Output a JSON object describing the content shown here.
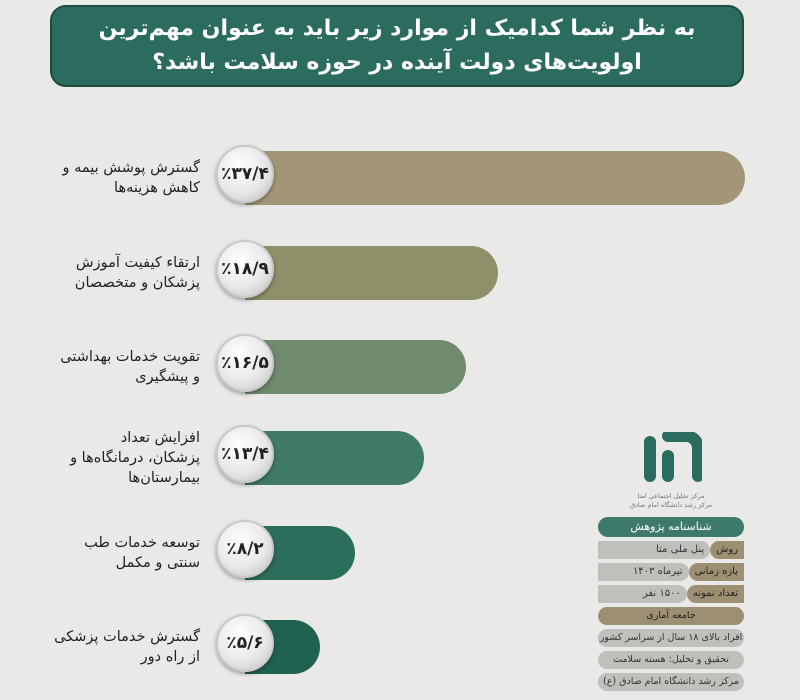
{
  "header": {
    "title_line1": "به نظر شما کدامیک از موارد زیر باید به عنوان مهم‌ترین",
    "title_line2": "اولویت‌های دولت آینده در حوزه سلامت باشد؟"
  },
  "chart_data": {
    "type": "bar",
    "orientation": "horizontal",
    "categories": [
      "گسترش پوشش بیمه و کاهش هزینه‌ها",
      "ارتقاء کیفیت آموزش پزشکان و متخصصان",
      "تقویت خدمات بهداشتی و پیشگیری",
      "افزایش تعداد پزشکان، درمانگاه‌ها و بیمارستان‌ها",
      "توسعه خدمات طب سنتی و مکمل",
      "گسترش خدمات پزشکی از راه دور"
    ],
    "values": [
      37.4,
      18.9,
      16.5,
      13.4,
      8.2,
      5.6
    ],
    "value_labels": [
      "٪۳۷/۴",
      "٪۱۸/۹",
      "٪۱۶/۵",
      "٪۱۳/۴",
      "٪۸/۲",
      "٪۵/۶"
    ],
    "label_lines": [
      [
        "گسترش پوشش بیمه و",
        "کاهش هزینه‌ها"
      ],
      [
        "ارتقاء کیفیت آموزش",
        "پزشکان و متخصصان"
      ],
      [
        "تقویت خدمات بهداشتی",
        "و پیشگیری"
      ],
      [
        "افزایش تعداد",
        "پزشکان، درمانگاه‌ها و",
        "بیمارستان‌ها"
      ],
      [
        "توسعه خدمات طب",
        "سنتی و مکمل"
      ],
      [
        "گسترش خدمات پزشکی",
        "از راه دور"
      ]
    ],
    "colors": [
      "#a39678",
      "#8f8f6a",
      "#6f8a6c",
      "#3f7a66",
      "#2c6e5c",
      "#1f6252"
    ],
    "xlim": [
      0,
      37.4
    ]
  },
  "logo": {
    "text_line1": "مرکز تحلیل اجتماعی امتا",
    "text_line2": "مرکز رشد دانشگاه امام صادق"
  },
  "info": {
    "header": "شناسنامه پژوهش",
    "method_key": "روش",
    "method_val": "پنل ملی متا",
    "period_key": "بازه زمانی",
    "period_val": "تیرماه ۱۴۰۳",
    "sample_key": "تعداد نمونه",
    "sample_val": "۱۵۰۰ نفر",
    "population": "جامعه آماری",
    "population_val": "افراد بالای ۱۸ سال از سراسر کشور",
    "analysis": "تحقیق و تحلیل: هسته سلامت",
    "center": "مرکز رشد دانشگاه امام صادق (ع)"
  }
}
